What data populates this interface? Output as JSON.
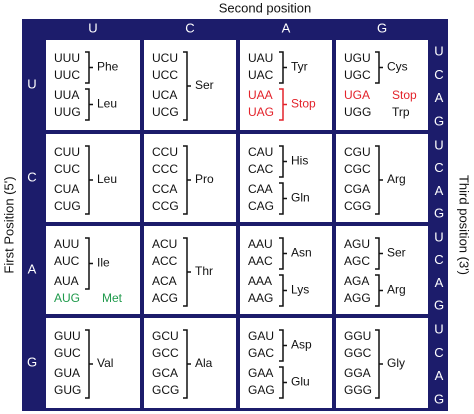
{
  "title": "Second position",
  "first_position_label": "First Position (5')",
  "third_position_label": "Third position (3')",
  "columns": [
    "U",
    "C",
    "A",
    "G"
  ],
  "third_position": [
    "U",
    "C",
    "A",
    "G"
  ],
  "rows": [
    {
      "base": "U",
      "cells": [
        {
          "codons": [
            "UUU",
            "UUC",
            "UUA",
            "UUG"
          ],
          "groups": [
            {
              "label": "Phe",
              "codons": [
                0,
                1
              ]
            },
            {
              "label": "Leu",
              "codons": [
                2,
                3
              ]
            }
          ]
        },
        {
          "codons": [
            "UCU",
            "UCC",
            "UCA",
            "UCG"
          ],
          "groups": [
            {
              "label": "Ser",
              "codons": [
                0,
                3
              ]
            }
          ]
        },
        {
          "codons": [
            "UAU",
            "UAC",
            "UAA",
            "UAG"
          ],
          "groups": [
            {
              "label": "Tyr",
              "codons": [
                0,
                1
              ]
            },
            {
              "label": "Stop",
              "codons": [
                2,
                3
              ],
              "color": "#e3232b"
            }
          ]
        },
        {
          "codons": [
            "UGU",
            "UGC",
            "UGA",
            "UGG"
          ],
          "groups": [
            {
              "label": "Cys",
              "codons": [
                0,
                1
              ]
            },
            {
              "label": "Stop",
              "codons": [
                2,
                2
              ],
              "color": "#e3232b"
            },
            {
              "label": "Trp",
              "codons": [
                3,
                3
              ]
            }
          ]
        }
      ]
    },
    {
      "base": "C",
      "cells": [
        {
          "codons": [
            "CUU",
            "CUC",
            "CUA",
            "CUG"
          ],
          "groups": [
            {
              "label": "Leu",
              "codons": [
                0,
                3
              ]
            }
          ]
        },
        {
          "codons": [
            "CCU",
            "CCC",
            "CCA",
            "CCG"
          ],
          "groups": [
            {
              "label": "Pro",
              "codons": [
                0,
                3
              ]
            }
          ]
        },
        {
          "codons": [
            "CAU",
            "CAC",
            "CAA",
            "CAG"
          ],
          "groups": [
            {
              "label": "His",
              "codons": [
                0,
                1
              ]
            },
            {
              "label": "Gln",
              "codons": [
                2,
                3
              ]
            }
          ]
        },
        {
          "codons": [
            "CGU",
            "CGC",
            "CGA",
            "CGG"
          ],
          "groups": [
            {
              "label": "Arg",
              "codons": [
                0,
                3
              ]
            }
          ]
        }
      ]
    },
    {
      "base": "A",
      "cells": [
        {
          "codons": [
            "AUU",
            "AUC",
            "AUA",
            "AUG"
          ],
          "groups": [
            {
              "label": "Ile",
              "codons": [
                0,
                2
              ]
            },
            {
              "label": "Met",
              "codons": [
                3,
                3
              ],
              "color": "#1f9a4b"
            }
          ]
        },
        {
          "codons": [
            "ACU",
            "ACC",
            "ACA",
            "ACG"
          ],
          "groups": [
            {
              "label": "Thr",
              "codons": [
                0,
                3
              ]
            }
          ]
        },
        {
          "codons": [
            "AAU",
            "AAC",
            "AAA",
            "AAG"
          ],
          "groups": [
            {
              "label": "Asn",
              "codons": [
                0,
                1
              ]
            },
            {
              "label": "Lys",
              "codons": [
                2,
                3
              ]
            }
          ]
        },
        {
          "codons": [
            "AGU",
            "AGC",
            "AGA",
            "AGG"
          ],
          "groups": [
            {
              "label": "Ser",
              "codons": [
                0,
                1
              ]
            },
            {
              "label": "Arg",
              "codons": [
                2,
                3
              ]
            }
          ]
        }
      ]
    },
    {
      "base": "G",
      "cells": [
        {
          "codons": [
            "GUU",
            "GUC",
            "GUA",
            "GUG"
          ],
          "groups": [
            {
              "label": "Val",
              "codons": [
                0,
                3
              ]
            }
          ]
        },
        {
          "codons": [
            "GCU",
            "GCC",
            "GCA",
            "GCG"
          ],
          "groups": [
            {
              "label": "Ala",
              "codons": [
                0,
                3
              ]
            }
          ]
        },
        {
          "codons": [
            "GAU",
            "GAC",
            "GAA",
            "GAG"
          ],
          "groups": [
            {
              "label": "Asp",
              "codons": [
                0,
                1
              ]
            },
            {
              "label": "Glu",
              "codons": [
                2,
                3
              ]
            }
          ]
        },
        {
          "codons": [
            "GGU",
            "GGC",
            "GGA",
            "GGG"
          ],
          "groups": [
            {
              "label": "Gly",
              "codons": [
                0,
                3
              ]
            }
          ]
        }
      ]
    }
  ]
}
